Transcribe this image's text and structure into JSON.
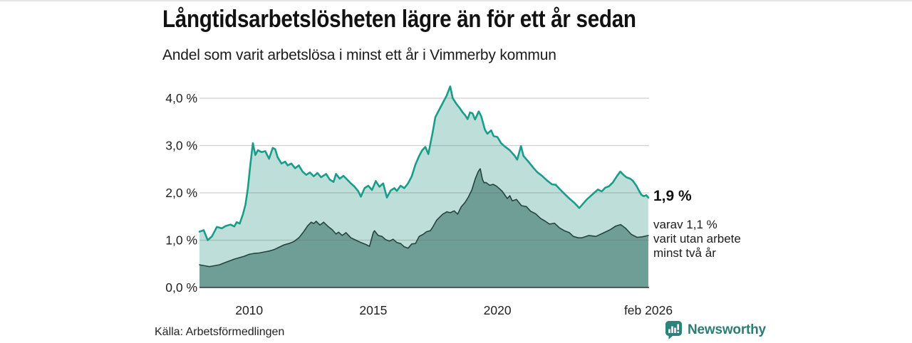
{
  "header": {
    "title": "Långtidsarbetslösheten lägre än för ett år sedan",
    "subtitle": "Andel som varit arbetslösa i minst ett år i Vimmerby kommun"
  },
  "annotation": {
    "primary": "1,9 %",
    "secondary": "varav 1,1 %\nvarit utan arbete\nminst två år"
  },
  "footer": {
    "source": "Källa: Arbetsförmedlingen",
    "brand": "Newsworthy"
  },
  "chart_data": {
    "type": "area",
    "title": "Långtidsarbetslösheten lägre än för ett år sedan",
    "subtitle": "Andel som varit arbetslösa i minst ett år i Vimmerby kommun",
    "source": "Källa: Arbetsförmedlingen",
    "unit": "%",
    "x_axis": {
      "range": [
        2008.0,
        2026.083
      ],
      "ticks": [
        {
          "year": 2010,
          "label": "2010"
        },
        {
          "year": 2015,
          "label": "2015"
        },
        {
          "year": 2020,
          "label": "2020"
        },
        {
          "year": 2026.083,
          "label": "feb 2026"
        }
      ]
    },
    "y_axis": {
      "range": [
        0,
        4.55
      ],
      "ticks": [
        {
          "value": 0,
          "label": "0,0 %"
        },
        {
          "value": 1,
          "label": "1,0 %"
        },
        {
          "value": 2,
          "label": "2,0 %"
        },
        {
          "value": 3,
          "label": "3,0 %"
        },
        {
          "value": 4,
          "label": "4,0 %"
        }
      ]
    },
    "colors": {
      "grid": "#6b6b6b",
      "axis": "#333333",
      "accent": "#1a9c8b",
      "brand_teal": "#2d7d73"
    },
    "series": [
      {
        "id": "arbetslosa-minst-ett-ar",
        "name": "Andel arbetslösa minst ett år",
        "color": "#1a9c8b",
        "fill": "#bedfd9",
        "stroke_width": 2.6,
        "end_value_label": "1,9 %",
        "values": [
          [
            2008.0,
            1.18
          ],
          [
            2008.17,
            1.21
          ],
          [
            2008.33,
            1.0
          ],
          [
            2008.5,
            1.08
          ],
          [
            2008.7,
            1.28
          ],
          [
            2008.9,
            1.25
          ],
          [
            2009.05,
            1.3
          ],
          [
            2009.25,
            1.33
          ],
          [
            2009.4,
            1.29
          ],
          [
            2009.5,
            1.38
          ],
          [
            2009.62,
            1.35
          ],
          [
            2009.75,
            1.55
          ],
          [
            2009.85,
            1.75
          ],
          [
            2009.95,
            2.1
          ],
          [
            2010.05,
            2.6
          ],
          [
            2010.15,
            3.05
          ],
          [
            2010.25,
            2.8
          ],
          [
            2010.35,
            2.9
          ],
          [
            2010.5,
            2.86
          ],
          [
            2010.65,
            2.88
          ],
          [
            2010.8,
            2.72
          ],
          [
            2010.95,
            2.95
          ],
          [
            2011.05,
            2.92
          ],
          [
            2011.15,
            2.75
          ],
          [
            2011.3,
            2.62
          ],
          [
            2011.45,
            2.66
          ],
          [
            2011.55,
            2.58
          ],
          [
            2011.7,
            2.62
          ],
          [
            2011.85,
            2.52
          ],
          [
            2012.0,
            2.58
          ],
          [
            2012.15,
            2.45
          ],
          [
            2012.3,
            2.38
          ],
          [
            2012.45,
            2.43
          ],
          [
            2012.6,
            2.35
          ],
          [
            2012.75,
            2.42
          ],
          [
            2012.9,
            2.33
          ],
          [
            2013.1,
            2.4
          ],
          [
            2013.25,
            2.28
          ],
          [
            2013.4,
            2.23
          ],
          [
            2013.5,
            2.4
          ],
          [
            2013.65,
            2.3
          ],
          [
            2013.8,
            2.36
          ],
          [
            2013.95,
            2.28
          ],
          [
            2014.1,
            2.2
          ],
          [
            2014.25,
            2.13
          ],
          [
            2014.4,
            2.03
          ],
          [
            2014.5,
            1.92
          ],
          [
            2014.65,
            2.1
          ],
          [
            2014.8,
            2.15
          ],
          [
            2014.95,
            2.06
          ],
          [
            2015.1,
            2.25
          ],
          [
            2015.25,
            2.13
          ],
          [
            2015.4,
            2.2
          ],
          [
            2015.55,
            1.9
          ],
          [
            2015.7,
            2.05
          ],
          [
            2015.85,
            2.1
          ],
          [
            2015.95,
            2.04
          ],
          [
            2016.1,
            2.15
          ],
          [
            2016.25,
            2.1
          ],
          [
            2016.4,
            2.2
          ],
          [
            2016.55,
            2.35
          ],
          [
            2016.7,
            2.6
          ],
          [
            2016.85,
            2.78
          ],
          [
            2016.97,
            2.9
          ],
          [
            2017.1,
            2.97
          ],
          [
            2017.22,
            2.82
          ],
          [
            2017.4,
            3.3
          ],
          [
            2017.5,
            3.6
          ],
          [
            2017.6,
            3.7
          ],
          [
            2017.75,
            3.85
          ],
          [
            2017.95,
            4.05
          ],
          [
            2018.1,
            4.25
          ],
          [
            2018.2,
            4.0
          ],
          [
            2018.35,
            3.88
          ],
          [
            2018.5,
            3.78
          ],
          [
            2018.6,
            3.7
          ],
          [
            2018.7,
            3.64
          ],
          [
            2018.8,
            3.56
          ],
          [
            2018.9,
            3.7
          ],
          [
            2019.0,
            3.68
          ],
          [
            2019.1,
            3.55
          ],
          [
            2019.25,
            3.72
          ],
          [
            2019.35,
            3.62
          ],
          [
            2019.5,
            3.33
          ],
          [
            2019.6,
            3.25
          ],
          [
            2019.75,
            3.32
          ],
          [
            2019.85,
            3.2
          ],
          [
            2020.0,
            3.18
          ],
          [
            2020.15,
            3.05
          ],
          [
            2020.3,
            2.98
          ],
          [
            2020.5,
            2.9
          ],
          [
            2020.7,
            2.78
          ],
          [
            2020.8,
            2.7
          ],
          [
            2020.95,
            2.99
          ],
          [
            2021.05,
            2.78
          ],
          [
            2021.25,
            2.66
          ],
          [
            2021.45,
            2.53
          ],
          [
            2021.6,
            2.44
          ],
          [
            2021.8,
            2.36
          ],
          [
            2022.0,
            2.26
          ],
          [
            2022.2,
            2.18
          ],
          [
            2022.35,
            2.17
          ],
          [
            2022.55,
            2.06
          ],
          [
            2022.7,
            1.98
          ],
          [
            2022.9,
            1.88
          ],
          [
            2023.1,
            1.79
          ],
          [
            2023.3,
            1.68
          ],
          [
            2023.45,
            1.77
          ],
          [
            2023.6,
            1.86
          ],
          [
            2023.75,
            1.93
          ],
          [
            2023.9,
            2.0
          ],
          [
            2024.05,
            2.07
          ],
          [
            2024.2,
            2.03
          ],
          [
            2024.35,
            2.11
          ],
          [
            2024.5,
            2.14
          ],
          [
            2024.65,
            2.22
          ],
          [
            2024.8,
            2.34
          ],
          [
            2024.95,
            2.45
          ],
          [
            2025.1,
            2.37
          ],
          [
            2025.2,
            2.33
          ],
          [
            2025.35,
            2.3
          ],
          [
            2025.45,
            2.26
          ],
          [
            2025.6,
            2.15
          ],
          [
            2025.7,
            2.05
          ],
          [
            2025.8,
            1.96
          ],
          [
            2025.9,
            1.93
          ],
          [
            2026.0,
            1.95
          ],
          [
            2026.08,
            1.9
          ]
        ]
      },
      {
        "id": "arbetslosa-minst-tva-ar",
        "name": "Andel arbetslösa minst två år",
        "color": "#26443e",
        "fill": "#6f9e97",
        "stroke_width": 1.6,
        "end_value_label": "1,1 %",
        "values": [
          [
            2008.0,
            0.48
          ],
          [
            2008.2,
            0.46
          ],
          [
            2008.4,
            0.44
          ],
          [
            2008.6,
            0.46
          ],
          [
            2008.8,
            0.48
          ],
          [
            2009.0,
            0.52
          ],
          [
            2009.2,
            0.56
          ],
          [
            2009.4,
            0.6
          ],
          [
            2009.6,
            0.63
          ],
          [
            2009.8,
            0.66
          ],
          [
            2010.0,
            0.7
          ],
          [
            2010.2,
            0.72
          ],
          [
            2010.4,
            0.73
          ],
          [
            2010.6,
            0.75
          ],
          [
            2010.8,
            0.77
          ],
          [
            2011.0,
            0.8
          ],
          [
            2011.2,
            0.85
          ],
          [
            2011.4,
            0.9
          ],
          [
            2011.6,
            0.93
          ],
          [
            2011.8,
            0.97
          ],
          [
            2012.0,
            1.05
          ],
          [
            2012.2,
            1.18
          ],
          [
            2012.35,
            1.3
          ],
          [
            2012.5,
            1.38
          ],
          [
            2012.6,
            1.35
          ],
          [
            2012.7,
            1.4
          ],
          [
            2012.85,
            1.32
          ],
          [
            2013.0,
            1.38
          ],
          [
            2013.2,
            1.28
          ],
          [
            2013.35,
            1.22
          ],
          [
            2013.5,
            1.13
          ],
          [
            2013.6,
            1.17
          ],
          [
            2013.75,
            1.1
          ],
          [
            2013.9,
            1.16
          ],
          [
            2014.1,
            1.05
          ],
          [
            2014.3,
            1.0
          ],
          [
            2014.5,
            0.95
          ],
          [
            2014.7,
            0.91
          ],
          [
            2014.85,
            0.87
          ],
          [
            2015.0,
            1.16
          ],
          [
            2015.05,
            1.2
          ],
          [
            2015.2,
            1.1
          ],
          [
            2015.35,
            1.08
          ],
          [
            2015.5,
            1.01
          ],
          [
            2015.65,
            0.98
          ],
          [
            2015.8,
            1.02
          ],
          [
            2015.95,
            0.95
          ],
          [
            2016.1,
            0.93
          ],
          [
            2016.25,
            0.86
          ],
          [
            2016.4,
            0.83
          ],
          [
            2016.55,
            0.92
          ],
          [
            2016.7,
            0.93
          ],
          [
            2016.85,
            1.08
          ],
          [
            2017.0,
            1.12
          ],
          [
            2017.15,
            1.18
          ],
          [
            2017.3,
            1.2
          ],
          [
            2017.4,
            1.28
          ],
          [
            2017.55,
            1.42
          ],
          [
            2017.7,
            1.5
          ],
          [
            2017.8,
            1.55
          ],
          [
            2017.97,
            1.6
          ],
          [
            2018.1,
            1.58
          ],
          [
            2018.26,
            1.62
          ],
          [
            2018.4,
            1.55
          ],
          [
            2018.54,
            1.7
          ],
          [
            2018.7,
            1.8
          ],
          [
            2018.83,
            1.91
          ],
          [
            2018.97,
            2.06
          ],
          [
            2019.11,
            2.3
          ],
          [
            2019.23,
            2.45
          ],
          [
            2019.31,
            2.51
          ],
          [
            2019.4,
            2.28
          ],
          [
            2019.47,
            2.21
          ],
          [
            2019.54,
            2.22
          ],
          [
            2019.69,
            2.16
          ],
          [
            2019.83,
            2.18
          ],
          [
            2019.97,
            2.14
          ],
          [
            2020.1,
            2.08
          ],
          [
            2020.2,
            2.03
          ],
          [
            2020.4,
            1.88
          ],
          [
            2020.5,
            1.94
          ],
          [
            2020.6,
            1.83
          ],
          [
            2020.77,
            1.86
          ],
          [
            2020.97,
            1.73
          ],
          [
            2021.17,
            1.71
          ],
          [
            2021.34,
            1.61
          ],
          [
            2021.54,
            1.56
          ],
          [
            2021.74,
            1.46
          ],
          [
            2021.9,
            1.41
          ],
          [
            2022.1,
            1.34
          ],
          [
            2022.3,
            1.36
          ],
          [
            2022.5,
            1.26
          ],
          [
            2022.7,
            1.2
          ],
          [
            2022.9,
            1.16
          ],
          [
            2023.06,
            1.08
          ],
          [
            2023.26,
            1.05
          ],
          [
            2023.4,
            1.05
          ],
          [
            2023.69,
            1.1
          ],
          [
            2023.97,
            1.08
          ],
          [
            2024.26,
            1.15
          ],
          [
            2024.54,
            1.22
          ],
          [
            2024.77,
            1.3
          ],
          [
            2024.97,
            1.33
          ],
          [
            2025.17,
            1.25
          ],
          [
            2025.4,
            1.12
          ],
          [
            2025.63,
            1.06
          ],
          [
            2025.83,
            1.07
          ],
          [
            2026.08,
            1.1
          ]
        ]
      }
    ],
    "annotations": {
      "primary": "1,9 %",
      "secondary": "varav 1,1 %\nvarit utan arbete\nminst två år"
    },
    "legend_position": "none",
    "grid": true
  }
}
